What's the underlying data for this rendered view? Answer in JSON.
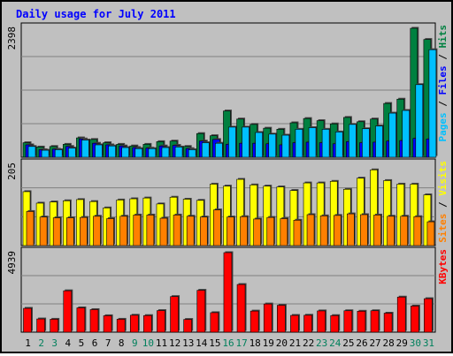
{
  "chart_data": {
    "type": "bar",
    "title": "Daily usage for July 2011",
    "categories": [
      "1",
      "2",
      "3",
      "4",
      "5",
      "6",
      "7",
      "8",
      "9",
      "10",
      "11",
      "12",
      "13",
      "14",
      "15",
      "16",
      "17",
      "18",
      "19",
      "20",
      "21",
      "22",
      "23",
      "24",
      "25",
      "26",
      "27",
      "28",
      "29",
      "30",
      "31"
    ],
    "weekend_days": [
      "2",
      "3",
      "9",
      "10",
      "16",
      "17",
      "23",
      "24",
      "30",
      "31"
    ],
    "panels": [
      {
        "name": "hits-files-pages",
        "ymax_label": "2398",
        "ylim": [
          0,
          2398
        ],
        "series": [
          {
            "name": "Hits",
            "color": "#008040",
            "values": [
              270,
              190,
              200,
              240,
              360,
              330,
              270,
              240,
              210,
              240,
              290,
              300,
              200,
              440,
              400,
              860,
              710,
              610,
              540,
              520,
              640,
              720,
              680,
              620,
              740,
              660,
              710,
              1000,
              1080,
              2398,
              2190
            ]
          },
          {
            "name": "Files",
            "color": "#0000ff",
            "values": [
              230,
              140,
              150,
              200,
              340,
              260,
              230,
              210,
              180,
              170,
              210,
              220,
              160,
              300,
              330,
              240,
              260,
              260,
              250,
              230,
              270,
              280,
              270,
              250,
              290,
              270,
              280,
              300,
              310,
              350,
              340
            ]
          },
          {
            "name": "Pages",
            "color": "#00c0ff",
            "values": [
              200,
              130,
              140,
              170,
              320,
              230,
              210,
              180,
              160,
              160,
              180,
              190,
              140,
              270,
              260,
              560,
              560,
              460,
              430,
              410,
              520,
              550,
              520,
              470,
              610,
              530,
              580,
              820,
              870,
              1350,
              2000
            ]
          }
        ]
      },
      {
        "name": "visits-sites",
        "ymax_label": "205",
        "ylim": [
          0,
          205
        ],
        "series": [
          {
            "name": "Visits",
            "color": "#ffff00",
            "values": [
              136,
              107,
              110,
              113,
              116,
              111,
              95,
              115,
              118,
              120,
              105,
              122,
              117,
              114,
              155,
              150,
              167,
              153,
              150,
              148,
              139,
              158,
              158,
              162,
              142,
              170,
              191,
              164,
              155,
              155,
              128
            ]
          },
          {
            "name": "Sites",
            "color": "#ff8000",
            "values": [
              86,
              72,
              70,
              70,
              71,
              74,
              68,
              74,
              77,
              77,
              69,
              77,
              74,
              72,
              90,
              72,
              73,
              67,
              71,
              68,
              64,
              78,
              75,
              76,
              80,
              78,
              77,
              74,
              74,
              73,
              60
            ]
          }
        ]
      },
      {
        "name": "kbytes",
        "ymax_label": "4939",
        "ylim": [
          0,
          4939
        ],
        "series": [
          {
            "name": "KBytes",
            "color": "#ff0000",
            "values": [
              1480,
              820,
              800,
              2570,
              1510,
              1400,
              1020,
              800,
              1050,
              1030,
              1340,
              2210,
              790,
              2600,
              1210,
              4939,
              2960,
              1310,
              1750,
              1670,
              1040,
              1050,
              1320,
              1030,
              1330,
              1300,
              1330,
              1180,
              2180,
              1620,
              2080
            ]
          }
        ]
      }
    ],
    "right_labels": {
      "top": [
        {
          "text": "Pages",
          "color": "#00c0ff"
        },
        {
          "text": " / ",
          "color": "#000000"
        },
        {
          "text": "Files",
          "color": "#0000ff"
        },
        {
          "text": " / ",
          "color": "#000000"
        },
        {
          "text": "Hits",
          "color": "#008040"
        }
      ],
      "middle": [
        {
          "text": "Sites",
          "color": "#ff8000"
        },
        {
          "text": " / ",
          "color": "#000000"
        },
        {
          "text": "Visits",
          "color": "#ffff00"
        }
      ],
      "bottom": [
        {
          "text": "KBytes",
          "color": "#ff0000"
        }
      ]
    },
    "colors": {
      "title": "#0000ff",
      "weekday_label": "#000000",
      "weekend_label": "#00805c",
      "background": "#c0c0c0",
      "gridline": "#808080"
    }
  }
}
